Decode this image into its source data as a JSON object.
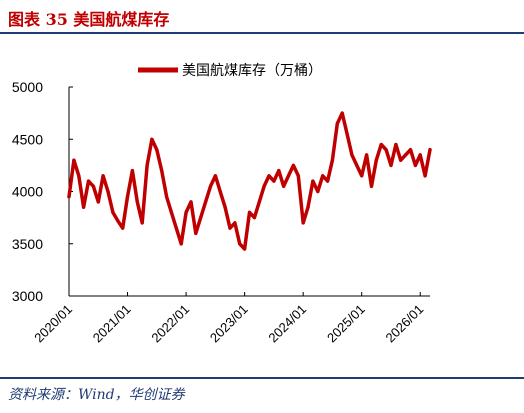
{
  "header": {
    "title": "图表 35  美国航煤库存"
  },
  "footer": {
    "source": "资料来源：Wind，华创证券"
  },
  "colors": {
    "series": "#c00000",
    "rule": "#1f3b73",
    "title": "#c00000"
  },
  "chart_data": {
    "type": "line",
    "title": "",
    "xlabel": "",
    "ylabel": "",
    "ylim": [
      3000,
      5000
    ],
    "yticks": [
      3000,
      3500,
      4000,
      4500,
      5000
    ],
    "xticks": [
      "2020/01",
      "2021/01",
      "2022/01",
      "2023/01",
      "2024/01",
      "2025/01",
      "2026/01"
    ],
    "xlim": [
      "2020/01",
      "2026/03"
    ],
    "grid": false,
    "legend": "top-center",
    "series": [
      {
        "name": "美国航煤库存（万桶）",
        "x": [
          "2020/01",
          "2020/02",
          "2020/03",
          "2020/04",
          "2020/05",
          "2020/06",
          "2020/07",
          "2020/08",
          "2020/09",
          "2020/10",
          "2020/11",
          "2020/12",
          "2021/01",
          "2021/02",
          "2021/03",
          "2021/04",
          "2021/05",
          "2021/06",
          "2021/07",
          "2021/08",
          "2021/09",
          "2021/10",
          "2021/11",
          "2021/12",
          "2022/01",
          "2022/02",
          "2022/03",
          "2022/04",
          "2022/05",
          "2022/06",
          "2022/07",
          "2022/08",
          "2022/09",
          "2022/10",
          "2022/11",
          "2022/12",
          "2023/01",
          "2023/02",
          "2023/03",
          "2023/04",
          "2023/05",
          "2023/06",
          "2023/07",
          "2023/08",
          "2023/09",
          "2023/10",
          "2023/11",
          "2023/12",
          "2024/01",
          "2024/02",
          "2024/03",
          "2024/04",
          "2024/05",
          "2024/06",
          "2024/07",
          "2024/08",
          "2024/09",
          "2024/10",
          "2024/11",
          "2024/12",
          "2025/01",
          "2025/02",
          "2025/03",
          "2025/04",
          "2025/05",
          "2025/06",
          "2025/07",
          "2025/08",
          "2025/09",
          "2025/10",
          "2025/11",
          "2025/12",
          "2026/01",
          "2026/02",
          "2026/03"
        ],
        "values": [
          3950,
          4300,
          4150,
          3850,
          4100,
          4050,
          3900,
          4150,
          4000,
          3800,
          3720,
          3650,
          3950,
          4200,
          3900,
          3700,
          4250,
          4500,
          4400,
          4200,
          3950,
          3800,
          3650,
          3500,
          3800,
          3900,
          3600,
          3750,
          3900,
          4050,
          4150,
          4000,
          3850,
          3650,
          3700,
          3500,
          3450,
          3800,
          3750,
          3900,
          4050,
          4150,
          4100,
          4200,
          4050,
          4150,
          4250,
          4150,
          3700,
          3850,
          4100,
          4000,
          4150,
          4100,
          4300,
          4650,
          4750,
          4550,
          4350,
          4250,
          4150,
          4350,
          4050,
          4300,
          4450,
          4400,
          4250,
          4450,
          4300,
          4350,
          4400,
          4250,
          4350,
          4150,
          4400
        ]
      }
    ]
  }
}
